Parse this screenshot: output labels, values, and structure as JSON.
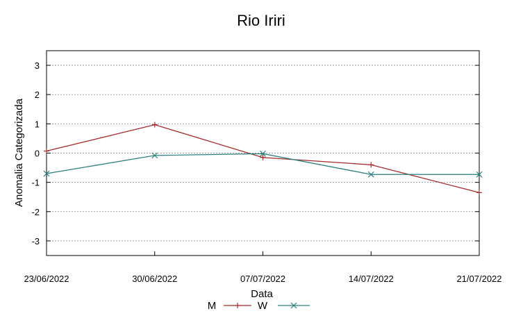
{
  "chart_data": {
    "type": "line",
    "title": "Rio Iriri",
    "xlabel": "Data",
    "ylabel": "Anomalia Categorizada",
    "categories": [
      "23/06/2022",
      "30/06/2022",
      "07/07/2022",
      "14/07/2022",
      "21/07/2022"
    ],
    "ylim": [
      -3.5,
      3.5
    ],
    "yticks": [
      3,
      2,
      1,
      0,
      -1,
      -2,
      -3
    ],
    "grid": "horizontal-dotted",
    "legend_position": "bottom-center",
    "series": [
      {
        "name": "M",
        "marker": "+",
        "color": "#a52a2a",
        "values": [
          0.07,
          0.97,
          -0.15,
          -0.4,
          -1.35
        ]
      },
      {
        "name": "W",
        "marker": "x",
        "color": "#2a7f7f",
        "values": [
          -0.7,
          -0.08,
          -0.02,
          -0.73,
          -0.73
        ]
      }
    ]
  }
}
